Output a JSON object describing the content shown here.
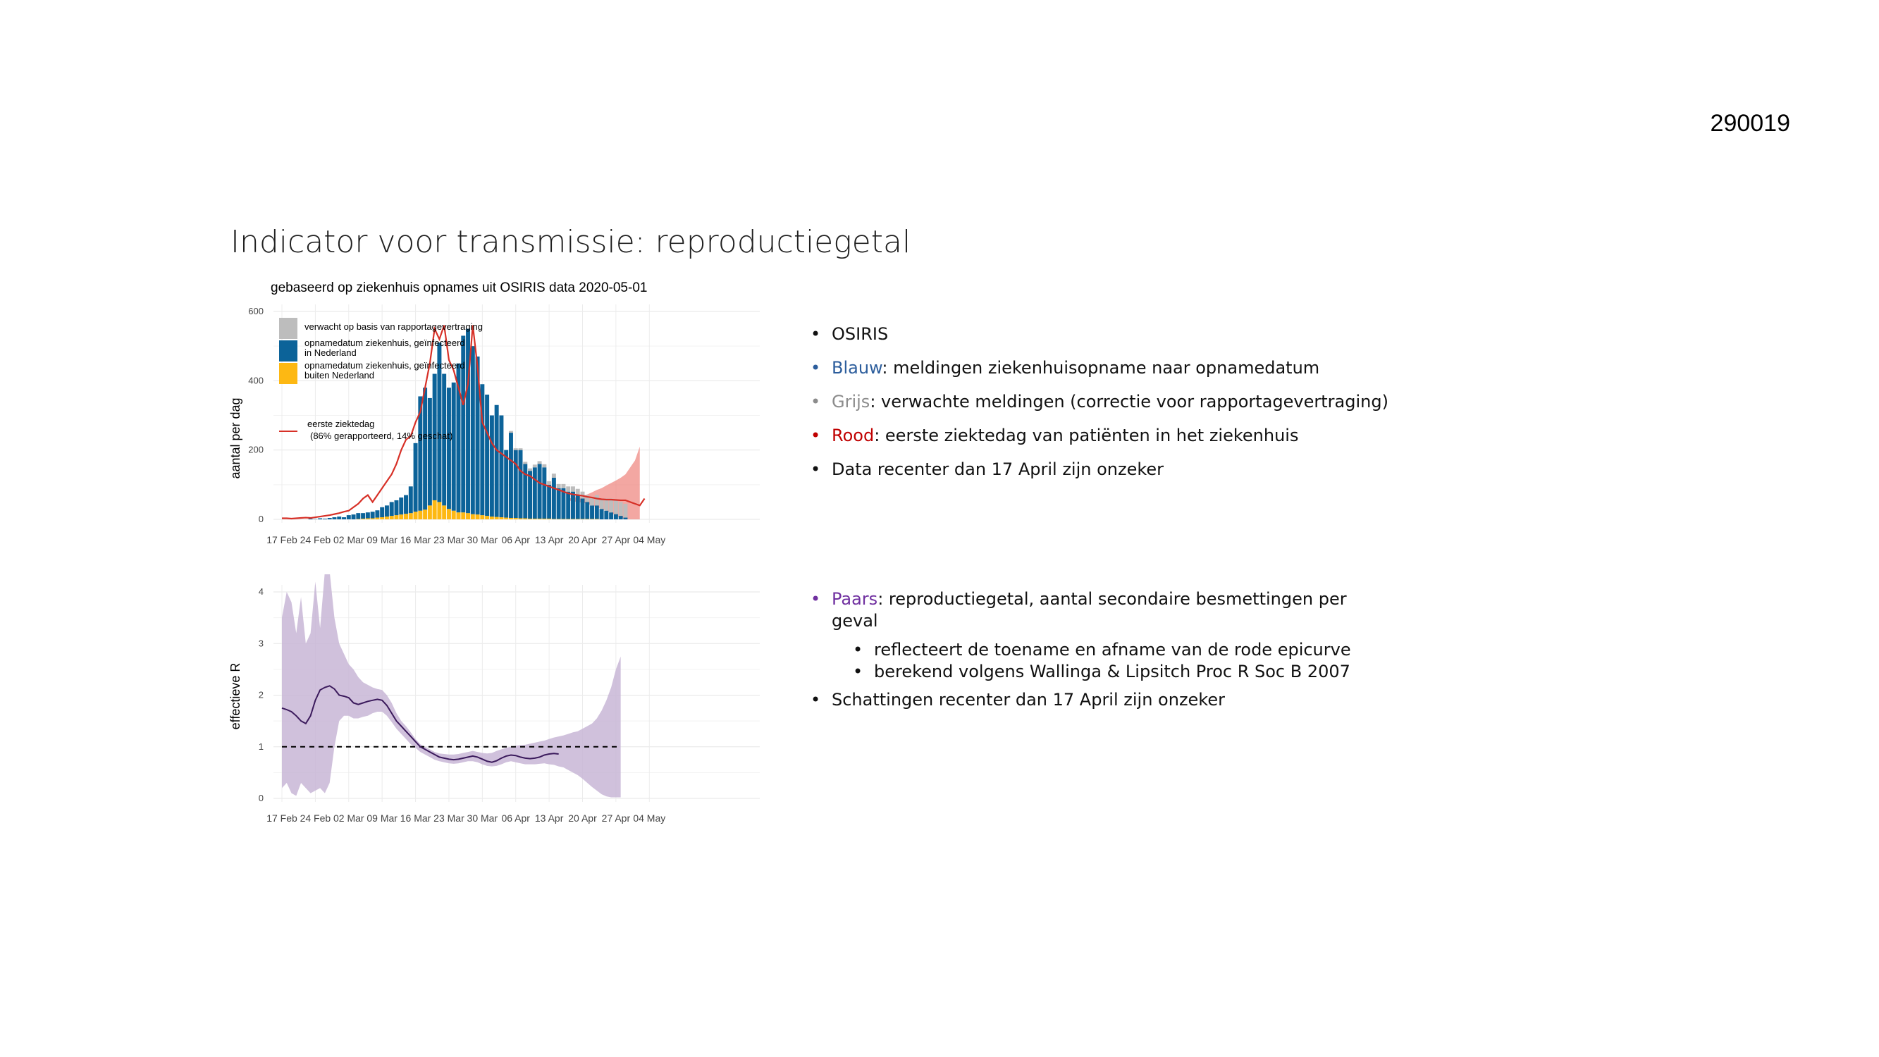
{
  "slide": {
    "number": "290019",
    "title": "Indicator voor transmissie: reproductiegetal"
  },
  "bullets_top": [
    {
      "keyword": "",
      "text": "OSIRIS",
      "color": ""
    },
    {
      "keyword": "Blauw",
      "text": ": meldingen ziekenhuisopname naar opnamedatum",
      "color": "#2c5d9c"
    },
    {
      "keyword": "Grijs",
      "text": ": verwachte meldingen (correctie voor rapportagevertraging)",
      "color": "#8c8c8c"
    },
    {
      "keyword": "Rood",
      "text": ": eerste ziektedag van patiënten in het ziekenhuis",
      "color": "#c00000"
    },
    {
      "keyword": "",
      "text": "Data recenter dan 17 April zijn onzeker",
      "color": ""
    }
  ],
  "bullets_bottom": {
    "main": {
      "keyword": "Paars",
      "text": ": reproductiegetal, aantal secondaire  besmettingen per geval",
      "color": "#7030a0"
    },
    "sub": [
      "reflecteert de toename en afname van de rode epicurve",
      "berekend volgens Wallinga & Lipsitch Proc R Soc B 2007"
    ],
    "last": "Schattingen recenter dan 17 April zijn onzeker"
  },
  "chart_data": [
    {
      "type": "bar",
      "title": "gebaseerd op ziekenhuis opnames uit OSIRIS data 2020-05-01",
      "xlabel": "",
      "ylabel": "aantal per dag",
      "ylim": [
        0,
        600
      ],
      "yticks": [
        "0",
        "200",
        "400",
        "600"
      ],
      "xticks": [
        "17 Feb",
        "24 Feb",
        "02 Mar",
        "09 Mar",
        "16 Mar",
        "23 Mar",
        "30 Mar",
        "06 Apr",
        "13 Apr",
        "20 Apr",
        "27 Apr",
        "04 May"
      ],
      "start_date": "2020-02-17",
      "legend_position": "top-left",
      "grid": true,
      "colors": {
        "expected": "#bdbdbd",
        "nl": "#0c6399",
        "abroad": "#fdb813",
        "onset": "#d73027",
        "onset_band": "#ef8a83"
      },
      "legend": {
        "expected": "verwacht op basis van rapportagevertraging",
        "nl": "opnamedatum ziekenhuis, geïnfecteerd in Nederland",
        "abroad": "opnamedatum ziekenhuis, geïnfecteerd buiten Nederland",
        "onset_line1": "eerste ziektedag",
        "onset_line2": "(86% gerapporteerd, 14% geschat)"
      },
      "series": [
        {
          "name": "opnamedatum ziekenhuis, geïnfecteerd in Nederland",
          "start_date": "2020-02-23",
          "values": [
            2,
            1,
            3,
            2,
            4,
            6,
            8,
            6,
            12,
            14,
            18,
            18,
            20,
            22,
            26,
            35,
            40,
            50,
            55,
            63,
            70,
            95,
            220,
            355,
            380,
            350,
            420,
            510,
            420,
            380,
            395,
            450,
            530,
            550,
            500,
            470,
            390,
            360,
            300,
            330,
            300,
            200,
            250,
            200,
            200,
            160,
            140,
            150,
            160,
            150,
            100,
            120,
            90,
            90,
            80,
            80,
            70,
            60,
            50,
            40,
            40,
            30,
            25,
            20,
            15,
            10,
            5
          ]
        },
        {
          "name": "opnamedatum ziekenhuis, geïnfecteerd buiten Nederland",
          "start_date": "2020-02-23",
          "values": [
            0,
            0,
            0,
            0,
            0,
            0,
            0,
            0,
            0,
            0,
            1,
            2,
            3,
            3,
            5,
            6,
            8,
            10,
            12,
            14,
            16,
            18,
            22,
            25,
            28,
            40,
            55,
            50,
            40,
            30,
            25,
            20,
            20,
            18,
            15,
            14,
            12,
            10,
            8,
            7,
            6,
            5,
            4,
            4,
            3,
            3,
            2,
            2,
            2,
            2,
            2,
            1,
            1,
            1,
            1,
            1,
            1,
            1,
            1,
            1,
            1,
            0,
            0,
            0,
            0,
            0,
            0
          ]
        },
        {
          "name": "verwacht op basis van rapportagevertraging",
          "start_date": "2020-02-23",
          "values": [
            0,
            0,
            0,
            0,
            0,
            0,
            0,
            0,
            0,
            0,
            0,
            0,
            0,
            0,
            0,
            0,
            0,
            0,
            0,
            0,
            0,
            0,
            0,
            0,
            0,
            0,
            0,
            0,
            0,
            0,
            0,
            0,
            0,
            0,
            0,
            0,
            0,
            0,
            0,
            0,
            0,
            0,
            5,
            5,
            5,
            6,
            7,
            8,
            8,
            9,
            10,
            12,
            12,
            12,
            15,
            15,
            18,
            20,
            20,
            25,
            30,
            30,
            35,
            40,
            40,
            40,
            40
          ]
        },
        {
          "name": "eerste ziektedag",
          "start_date": "2020-02-17",
          "values": [
            3,
            3,
            2,
            3,
            4,
            5,
            4,
            6,
            8,
            10,
            12,
            15,
            18,
            22,
            25,
            35,
            45,
            60,
            70,
            50,
            70,
            90,
            110,
            130,
            160,
            200,
            230,
            240,
            280,
            310,
            380,
            450,
            550,
            520,
            560,
            460,
            430,
            380,
            330,
            390,
            560,
            440,
            280,
            250,
            220,
            200,
            190,
            180,
            170,
            160,
            140,
            130,
            125,
            115,
            105,
            100,
            95,
            90,
            85,
            80,
            75,
            72,
            70,
            68,
            65,
            63,
            60,
            58,
            57,
            57,
            56,
            55,
            55,
            50,
            45,
            40,
            60
          ]
        },
        {
          "name": "band_lower",
          "start_date": "2020-04-17",
          "values": [
            55,
            52,
            50,
            48,
            45,
            40,
            35,
            30,
            25,
            20,
            10,
            5,
            0,
            0,
            0,
            0
          ]
        },
        {
          "name": "band_upper",
          "start_date": "2020-04-17",
          "values": [
            60,
            62,
            65,
            68,
            72,
            78,
            85,
            90,
            98,
            105,
            112,
            120,
            130,
            150,
            170,
            210
          ]
        }
      ]
    },
    {
      "type": "line",
      "title": "",
      "xlabel": "",
      "ylabel": "effectieve R",
      "ylim": [
        0,
        4
      ],
      "yticks": [
        "0",
        "1",
        "2",
        "3",
        "4"
      ],
      "xticks": [
        "17 Feb",
        "24 Feb",
        "02 Mar",
        "09 Mar",
        "16 Mar",
        "23 Mar",
        "30 Mar",
        "06 Apr",
        "13 Apr",
        "20 Apr",
        "27 Apr",
        "04 May"
      ],
      "start_date": "2020-02-17",
      "reference_line": 1,
      "grid": true,
      "colors": {
        "line": "#3b1a5c",
        "band": "#c8b6d6",
        "ref": "#000000"
      },
      "series": [
        {
          "name": "R",
          "values": [
            1.75,
            1.72,
            1.68,
            1.6,
            1.5,
            1.45,
            1.6,
            1.9,
            2.1,
            2.15,
            2.18,
            2.12,
            2.0,
            1.98,
            1.95,
            1.85,
            1.82,
            1.85,
            1.88,
            1.9,
            1.92,
            1.9,
            1.8,
            1.65,
            1.5,
            1.4,
            1.3,
            1.2,
            1.1,
            1.0,
            0.95,
            0.9,
            0.85,
            0.8,
            0.78,
            0.76,
            0.75,
            0.76,
            0.78,
            0.8,
            0.82,
            0.8,
            0.76,
            0.72,
            0.7,
            0.73,
            0.78,
            0.82,
            0.84,
            0.83,
            0.8,
            0.78,
            0.77,
            0.78,
            0.8,
            0.84,
            0.86,
            0.87,
            0.86
          ]
        },
        {
          "name": "upper",
          "values": [
            3.5,
            4.0,
            3.8,
            3.2,
            3.9,
            3.0,
            3.2,
            4.2,
            3.3,
            4.4,
            4.5,
            3.5,
            3.0,
            2.8,
            2.6,
            2.5,
            2.35,
            2.25,
            2.2,
            2.15,
            2.12,
            2.1,
            2.0,
            1.85,
            1.65,
            1.5,
            1.4,
            1.28,
            1.15,
            1.05,
            1.0,
            0.95,
            0.9,
            0.87,
            0.86,
            0.85,
            0.85,
            0.86,
            0.88,
            0.9,
            0.92,
            0.9,
            0.88,
            0.87,
            0.88,
            0.92,
            0.95,
            0.98,
            1.0,
            1.02,
            1.03,
            1.04,
            1.06,
            1.08,
            1.1,
            1.12,
            1.15,
            1.18,
            1.2,
            1.22,
            1.25,
            1.28,
            1.3,
            1.35,
            1.4,
            1.45,
            1.55,
            1.7,
            1.9,
            2.15,
            2.5,
            2.75
          ]
        },
        {
          "name": "lower",
          "values": [
            0.2,
            0.3,
            0.1,
            0.05,
            0.3,
            0.2,
            0.1,
            0.15,
            0.2,
            0.1,
            0.3,
            1.0,
            1.5,
            1.6,
            1.6,
            1.55,
            1.55,
            1.58,
            1.6,
            1.65,
            1.68,
            1.68,
            1.6,
            1.48,
            1.35,
            1.25,
            1.15,
            1.05,
            0.98,
            0.9,
            0.85,
            0.8,
            0.75,
            0.72,
            0.7,
            0.68,
            0.67,
            0.68,
            0.7,
            0.72,
            0.72,
            0.7,
            0.66,
            0.63,
            0.62,
            0.63,
            0.66,
            0.7,
            0.72,
            0.7,
            0.68,
            0.66,
            0.66,
            0.66,
            0.67,
            0.68,
            0.66,
            0.65,
            0.62,
            0.6,
            0.55,
            0.5,
            0.45,
            0.38,
            0.3,
            0.22,
            0.15,
            0.08,
            0.04,
            0.02,
            0.02,
            0.02
          ]
        }
      ]
    }
  ]
}
